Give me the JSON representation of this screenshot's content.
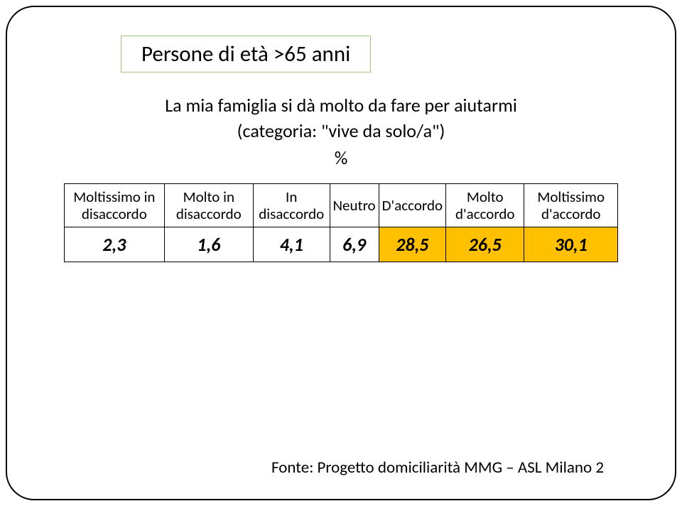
{
  "title": "Persone di età >65 anni",
  "subtitle_line1": "La mia famiglia si dà molto da fare per aiutarmi",
  "subtitle_line2": "(categoria: \"vive da solo/a\")",
  "percent_label": "%",
  "table": {
    "headers": [
      "Moltissimo in disaccordo",
      "Molto in disaccordo",
      "In disaccordo",
      "Neutro",
      "D'accordo",
      "Molto d'accordo",
      "Moltissimo d'accordo"
    ],
    "values": [
      "2,3",
      "1,6",
      "4,1",
      "6,9",
      "28,5",
      "26,5",
      "30,1"
    ],
    "highlight_columns": [
      4,
      5,
      6
    ],
    "highlight_color": "#ffc000",
    "border_color": "#000000",
    "header_fontsize": 21,
    "value_fontsize": 26
  },
  "source": "Fonte: Progetto domiciliarità MMG – ASL Milano 2",
  "colors": {
    "background": "#ffffff",
    "text": "#000000",
    "title_border": "#a0c47a",
    "frame_border": "#000000"
  }
}
